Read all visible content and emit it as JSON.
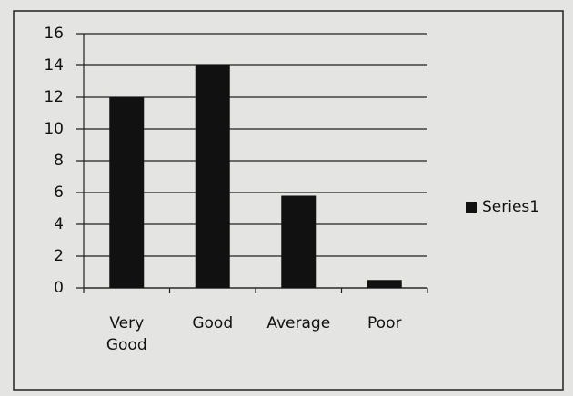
{
  "chart_data": {
    "type": "bar",
    "categories": [
      "Very Good",
      "Good",
      "Average",
      "Poor"
    ],
    "series": [
      {
        "name": "Series1",
        "color": "#111111",
        "values": [
          12,
          14,
          5.8,
          0.5
        ]
      }
    ],
    "ylim": [
      0,
      16
    ],
    "yticks": [
      0,
      2,
      4,
      6,
      8,
      10,
      12,
      14,
      16
    ],
    "grid": true,
    "legend": "right"
  }
}
